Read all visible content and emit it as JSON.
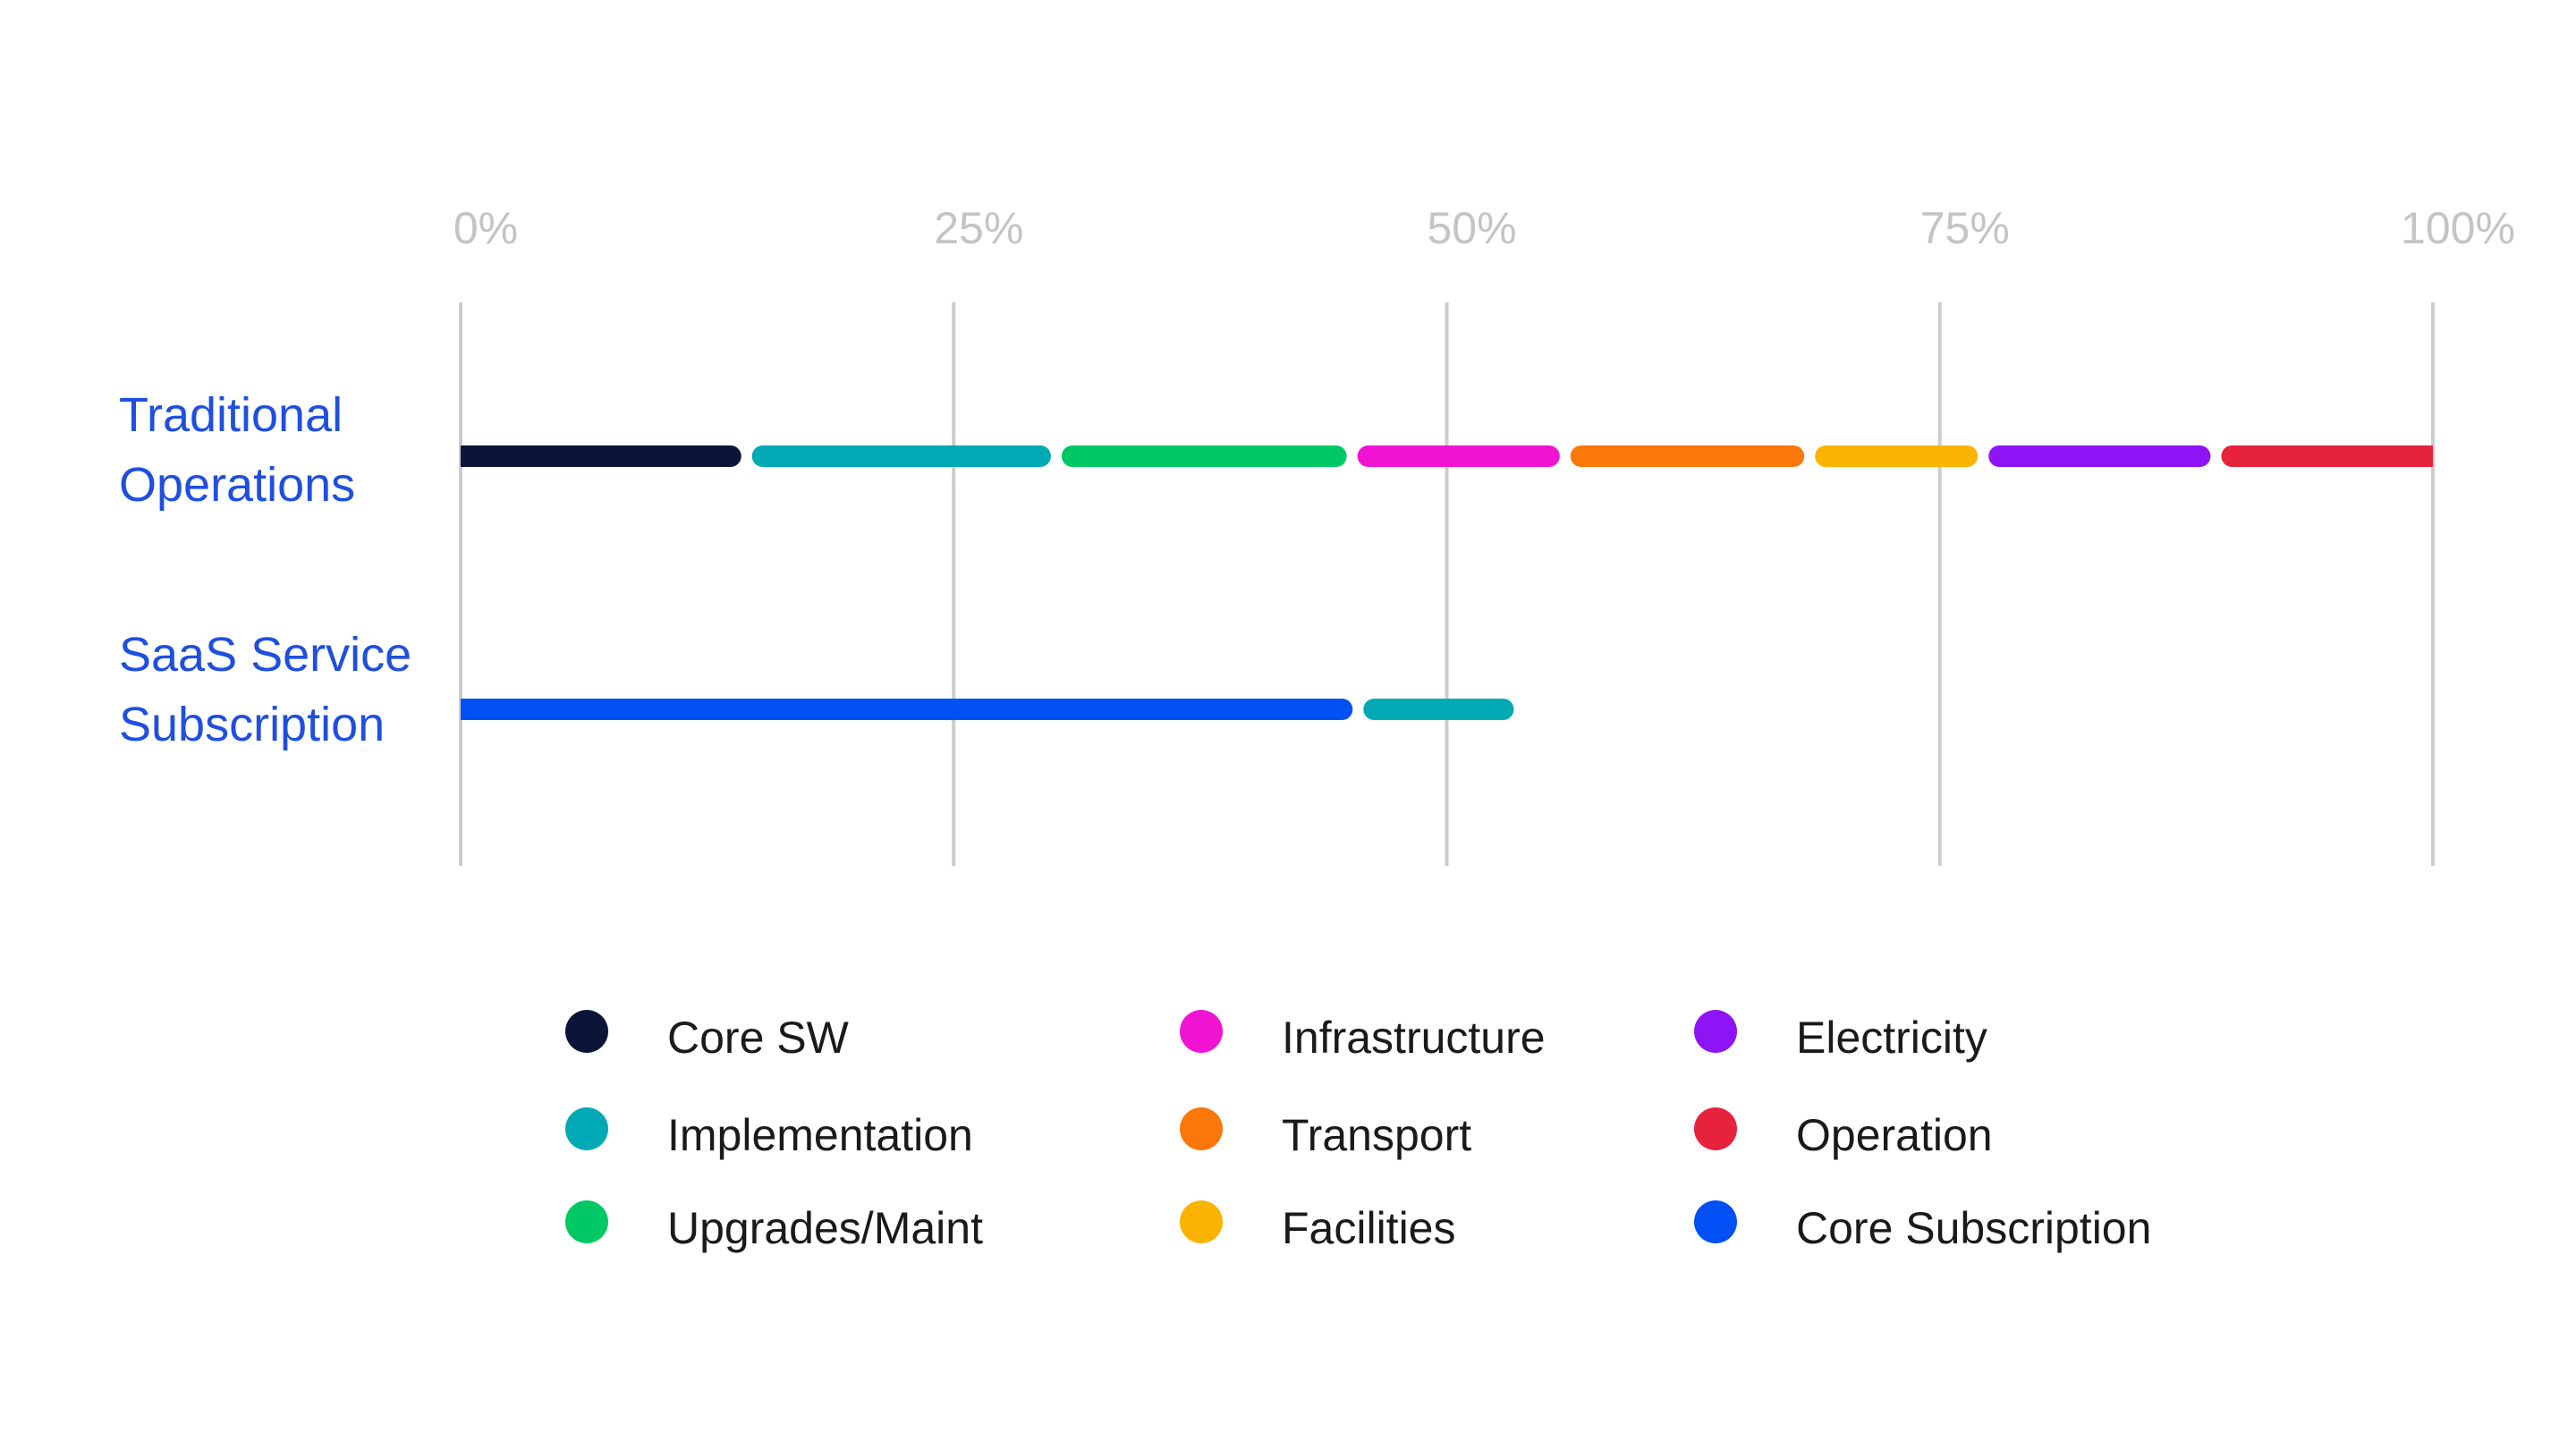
{
  "chart_data": {
    "type": "bar",
    "orientation": "horizontal",
    "stacked": true,
    "title": "",
    "xlabel": "",
    "ylabel": "",
    "xlim": [
      0,
      100
    ],
    "x_ticks": [
      "0%",
      "25%",
      "50%",
      "75%",
      "100%"
    ],
    "grid": true,
    "legend_position": "bottom",
    "categories": [
      [
        "Traditional",
        "Operations"
      ],
      [
        "SaaS Service",
        "Subscription"
      ]
    ],
    "series": [
      {
        "name": "Core SW",
        "color": "#0a1538",
        "values": [
          14.5,
          0
        ]
      },
      {
        "name": "Implementation",
        "color": "#00a9b4",
        "values": [
          15.7,
          7.9
        ]
      },
      {
        "name": "Upgrades/Maint",
        "color": "#00c864",
        "values": [
          15.0,
          0
        ]
      },
      {
        "name": "Infrastructure",
        "color": "#f014d2",
        "values": [
          10.8,
          0
        ]
      },
      {
        "name": "Transport",
        "color": "#fa780a",
        "values": [
          12.4,
          0
        ]
      },
      {
        "name": "Facilities",
        "color": "#fab400",
        "values": [
          8.8,
          0
        ]
      },
      {
        "name": "Electricity",
        "color": "#8c14f5",
        "values": [
          11.8,
          0
        ]
      },
      {
        "name": "Operation",
        "color": "#e6223c",
        "values": [
          11.0,
          0
        ]
      },
      {
        "name": "Core Subscription",
        "color": "#0050f5",
        "values": [
          0,
          45.5
        ]
      }
    ],
    "stack_order": [
      [
        "Core SW",
        "Implementation",
        "Upgrades/Maint",
        "Infrastructure",
        "Transport",
        "Facilities",
        "Electricity",
        "Operation"
      ],
      [
        "Core Subscription",
        "Implementation"
      ]
    ],
    "legend_order": [
      "Core SW",
      "Implementation",
      "Upgrades/Maint",
      "Infrastructure",
      "Transport",
      "Facilities",
      "Electricity",
      "Operation",
      "Core Subscription"
    ]
  }
}
